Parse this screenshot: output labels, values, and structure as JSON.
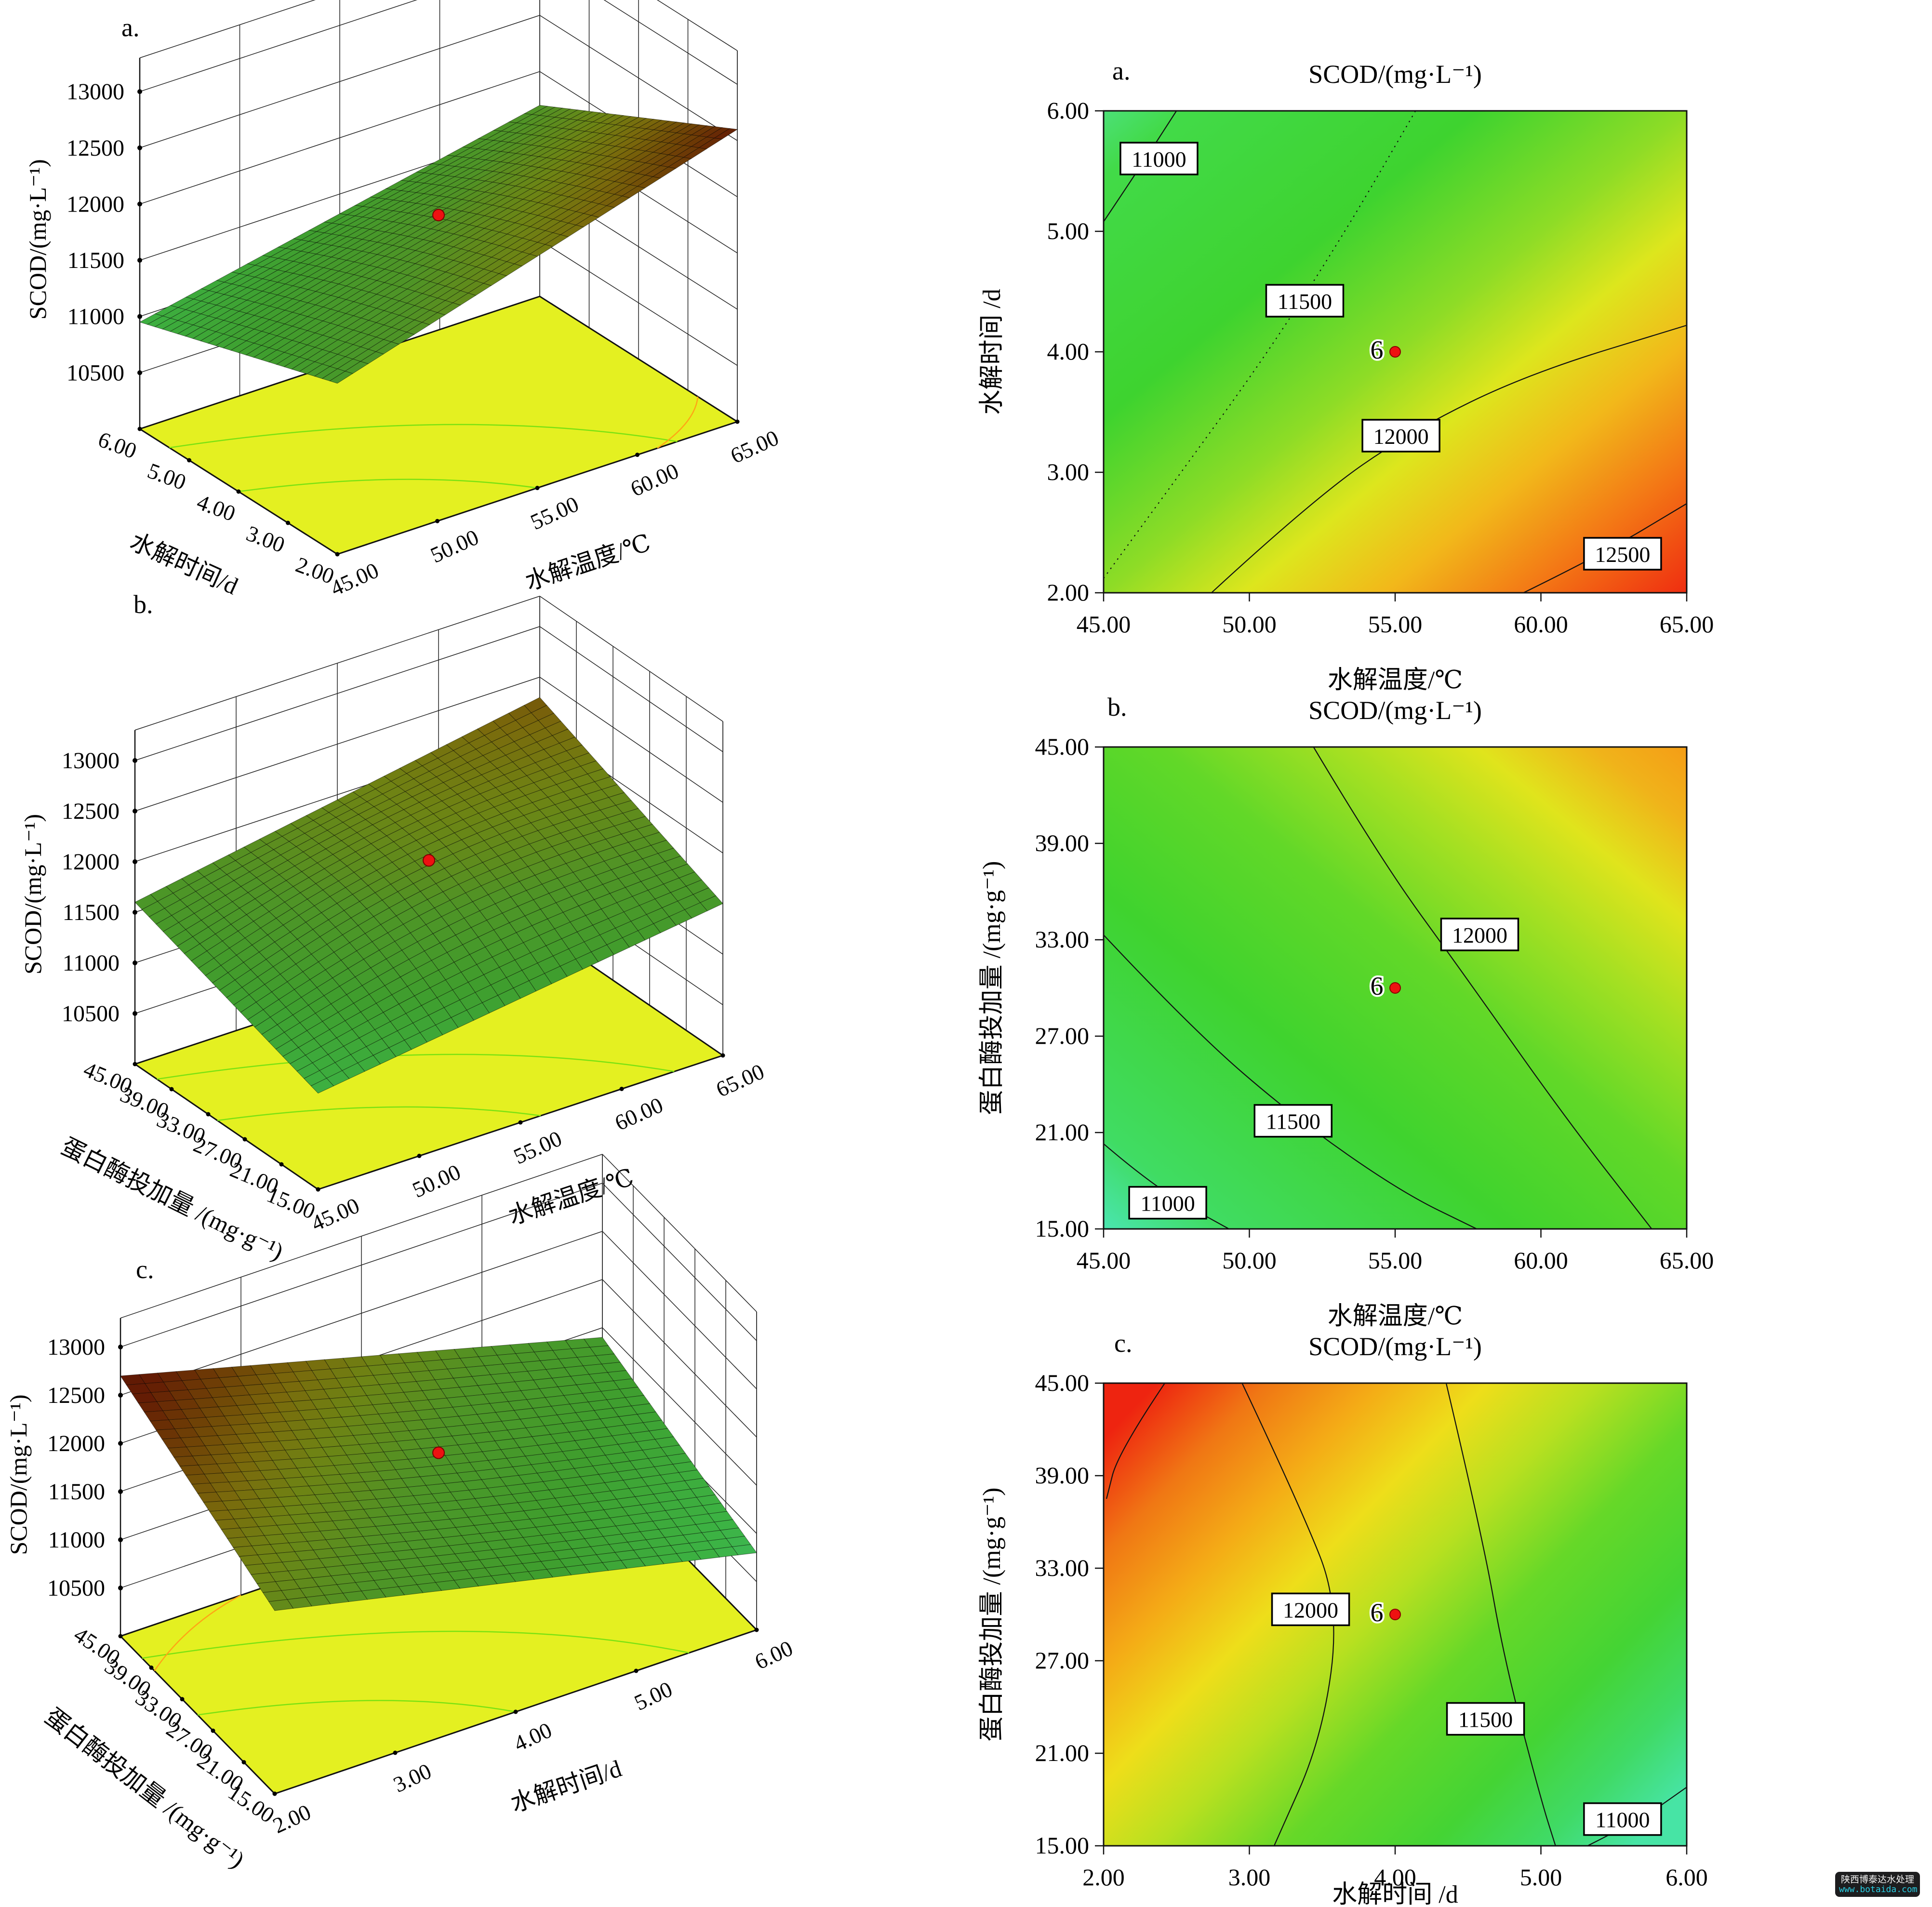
{
  "watermark": {
    "line1": "陕西博泰达水处理",
    "line2": "www.botaida.com"
  },
  "colors": {
    "design_point": "#ee1111",
    "floor": "#e4f021",
    "floor_contour_green": "#7ae212",
    "floor_contour_orange": "#ffa515",
    "axis_line": "#1a1a1a",
    "surface_colormap": [
      [
        10500,
        "#49c98f"
      ],
      [
        10900,
        "#3cb344"
      ],
      [
        11300,
        "#3f9e2e"
      ],
      [
        11700,
        "#4f9426"
      ],
      [
        12000,
        "#6e8414"
      ],
      [
        12200,
        "#7a6a0c"
      ],
      [
        12400,
        "#6f4206"
      ],
      [
        12600,
        "#641c04"
      ],
      [
        12900,
        "#551103"
      ]
    ]
  },
  "chart_data": [
    {
      "id": "a-surface",
      "type": "surface3d",
      "panel_label": "a.",
      "z_axis": {
        "label": "SCOD/(mg·L⁻¹)",
        "ticks": [
          "13000",
          "12500",
          "12000",
          "11500",
          "11000",
          "10500"
        ],
        "min": 10500,
        "max": 13000
      },
      "left_axis": {
        "label": "水解时间/d",
        "ticks": [
          "6.00",
          "5.00",
          "4.00",
          "3.00",
          "2.00"
        ]
      },
      "right_axis": {
        "label": "水解温度/℃",
        "ticks": [
          "45.00",
          "50.00",
          "55.00",
          "60.00",
          "65.00"
        ]
      },
      "surface_z": {
        "left": 10950,
        "front": 11520,
        "right": 12600,
        "back": 11700,
        "dome": 40
      },
      "design_point": {
        "label": "6",
        "z": 11800
      },
      "floor_arcs": [
        {
          "uv": [
            [
              0.5,
              0
            ],
            [
              0.33,
              0.33
            ],
            [
              0,
              0.5
            ]
          ],
          "color": "#7ae212"
        },
        {
          "uv": [
            [
              0.85,
              0
            ],
            [
              0.58,
              0.58
            ],
            [
              0,
              0.85
            ]
          ],
          "color": "#7ae212"
        },
        {
          "uv": [
            [
              0,
              0.8
            ],
            [
              0.07,
              0.93
            ],
            [
              0.2,
              1
            ]
          ],
          "color": "#ffa515"
        }
      ],
      "geom": {
        "L": [
          290,
          890
        ],
        "F": [
          700,
          1150
        ],
        "R": [
          1530,
          875
        ],
        "z0": 10000,
        "zscale": 0.2333,
        "letter": [
          252,
          75
        ]
      }
    },
    {
      "id": "a-contour",
      "type": "contour",
      "panel_label": "a.",
      "title": "SCOD/(mg·L⁻¹)",
      "xlabel": "水解温度/℃",
      "ylabel": "水解时间 /d",
      "xlim": [
        45,
        65
      ],
      "ylim": [
        2,
        6
      ],
      "x_ticks": [
        "45.00",
        "50.00",
        "55.00",
        "60.00",
        "65.00"
      ],
      "y_ticks": [
        "6.00",
        "5.00",
        "4.00",
        "3.00",
        "2.00"
      ],
      "gradient": {
        "dir": [
          0,
          0,
          1,
          1
        ],
        "stops": [
          [
            0,
            "#4ce077"
          ],
          [
            0.07,
            "#42da48"
          ],
          [
            0.32,
            "#3ed32f"
          ],
          [
            0.5,
            "#8edc26"
          ],
          [
            0.62,
            "#dde61d"
          ],
          [
            0.74,
            "#f2b81a"
          ],
          [
            0.87,
            "#f37415"
          ],
          [
            1,
            "#ef2d10"
          ]
        ]
      },
      "contours": [
        {
          "value": "11000",
          "points": [
            [
              45,
              5.08
            ],
            [
              46.3,
              5.55
            ],
            [
              47.5,
              6.0
            ]
          ],
          "label_at": [
            46.9,
            5.6
          ]
        },
        {
          "value": "11500",
          "points": [
            [
              45,
              2.12
            ],
            [
              47.6,
              2.98
            ],
            [
              50.6,
              3.98
            ],
            [
              53.3,
              5.0
            ],
            [
              55.7,
              6.0
            ]
          ],
          "label_at": [
            51.9,
            4.42
          ],
          "dashed": true
        },
        {
          "value": "12000",
          "points": [
            [
              48.7,
              2.0
            ],
            [
              52.2,
              2.78
            ],
            [
              55.6,
              3.35
            ],
            [
              59.6,
              3.82
            ],
            [
              65,
              4.22
            ]
          ],
          "label_at": [
            55.2,
            3.3
          ]
        },
        {
          "value": "12500",
          "points": [
            [
              59.4,
              2.0
            ],
            [
              62.1,
              2.32
            ],
            [
              65,
              2.74
            ]
          ],
          "label_at": [
            62.8,
            2.32
          ]
        }
      ],
      "point": {
        "x": 55,
        "y": 4.0,
        "label": "6"
      },
      "area": [
        2290,
        230,
        3500,
        1230
      ],
      "anchors": {
        "title": [
          2895,
          172
        ],
        "letter": [
          2308,
          165
        ],
        "xticks_y": 1312,
        "xlabel_y": 1428
      }
    },
    {
      "id": "b-surface",
      "type": "surface3d",
      "panel_label": "b.",
      "z_axis": {
        "label": "SCOD/(mg·L⁻¹)",
        "ticks": [
          "13000",
          "12500",
          "12000",
          "11500",
          "11000",
          "10500"
        ],
        "min": 10500,
        "max": 13000
      },
      "left_axis": {
        "label": "蛋白酶投加量 /(mg·g⁻¹)",
        "ticks": [
          "45.00",
          "39.00",
          "33.00",
          "27.00",
          "21.00",
          "15.00"
        ]
      },
      "right_axis": {
        "label": "水解温度/℃",
        "ticks": [
          "45.00",
          "50.00",
          "55.00",
          "60.00",
          "65.00"
        ]
      },
      "surface_z": {
        "left": 11600,
        "front": 10950,
        "right": 11500,
        "back": 12300,
        "dome": 230
      },
      "design_point": {
        "label": "6",
        "z": 11900
      },
      "floor_arcs": [
        {
          "uv": [
            [
              0.55,
              0
            ],
            [
              0.36,
              0.36
            ],
            [
              0,
              0.55
            ]
          ],
          "color": "#7ae212"
        },
        {
          "uv": [
            [
              0.88,
              0
            ],
            [
              0.6,
              0.6
            ],
            [
              0,
              0.88
            ]
          ],
          "color": "#7ae212"
        }
      ],
      "geom": {
        "L": [
          280,
          2208
        ],
        "F": [
          660,
          2468
        ],
        "R": [
          1500,
          2190
        ],
        "z0": 10000,
        "zscale": 0.21,
        "letter": [
          277,
          1272
        ]
      }
    },
    {
      "id": "b-contour",
      "type": "contour",
      "panel_label": "b.",
      "title": "SCOD/(mg·L⁻¹)",
      "xlabel": "水解温度/℃",
      "ylabel": "蛋白酶投加量 /(mg·g⁻¹)",
      "xlim": [
        45,
        65
      ],
      "ylim": [
        15,
        45
      ],
      "x_ticks": [
        "45.00",
        "50.00",
        "55.00",
        "60.00",
        "65.00"
      ],
      "y_ticks": [
        "45.00",
        "39.00",
        "33.00",
        "27.00",
        "21.00",
        "15.00"
      ],
      "gradient": {
        "dir": [
          0,
          1,
          1,
          0
        ],
        "stops": [
          [
            0,
            "#4ae5b0"
          ],
          [
            0.1,
            "#40dc63"
          ],
          [
            0.35,
            "#3fd32e"
          ],
          [
            0.55,
            "#62d828"
          ],
          [
            0.7,
            "#a5e022"
          ],
          [
            0.82,
            "#e0e41c"
          ],
          [
            0.92,
            "#f0b31a"
          ],
          [
            1,
            "#f59d16"
          ]
        ]
      },
      "contours": [
        {
          "value": "12000",
          "points": [
            [
              52.2,
              45
            ],
            [
              54.5,
              38
            ],
            [
              57.3,
              31
            ],
            [
              60.8,
              22
            ],
            [
              63.8,
              15
            ]
          ],
          "label_at": [
            57.9,
            33.3
          ]
        },
        {
          "value": "11500",
          "points": [
            [
              45,
              33.3
            ],
            [
              48,
              27.5
            ],
            [
              51.5,
              22
            ],
            [
              55.2,
              17.3
            ],
            [
              57.8,
              15
            ]
          ],
          "label_at": [
            51.5,
            21.7
          ]
        },
        {
          "value": "11000",
          "points": [
            [
              45,
              20.3
            ],
            [
              46.8,
              17.5
            ],
            [
              49.3,
              15
            ]
          ],
          "label_at": [
            47.2,
            16.6
          ]
        }
      ],
      "point": {
        "x": 55,
        "y": 30,
        "label": "6"
      },
      "area": [
        2290,
        1550,
        3500,
        2550
      ],
      "anchors": {
        "title": [
          2895,
          1492
        ],
        "letter": [
          2298,
          1485
        ],
        "xticks_y": 2632,
        "xlabel_y": 2748
      }
    },
    {
      "id": "c-surface",
      "type": "surface3d",
      "panel_label": "c.",
      "z_axis": {
        "label": "SCOD/(mg·L⁻¹)",
        "ticks": [
          "13000",
          "12500",
          "12000",
          "11500",
          "11000",
          "10500"
        ],
        "min": 10500,
        "max": 13000
      },
      "left_axis": {
        "label": "蛋白酶投加量 /(mg·g⁻¹)",
        "ticks": [
          "45.00",
          "39.00",
          "33.00",
          "27.00",
          "21.00",
          "15.00"
        ]
      },
      "right_axis": {
        "label": "水解时间/d",
        "ticks": [
          "2.00",
          "3.00",
          "4.00",
          "5.00",
          "6.00"
        ]
      },
      "surface_z": {
        "left": 12700,
        "front": 11900,
        "right": 10800,
        "back": 11400,
        "dome": -60
      },
      "design_point": {
        "label": "6",
        "z": 11800
      },
      "floor_arcs": [
        {
          "uv": [
            [
              0.5,
              0
            ],
            [
              0.33,
              0.33
            ],
            [
              0,
              0.5
            ]
          ],
          "color": "#7ae212"
        },
        {
          "uv": [
            [
              0.86,
              0
            ],
            [
              0.58,
              0.58
            ],
            [
              0,
              0.86
            ]
          ],
          "color": "#7ae212"
        },
        {
          "uv": [
            [
              0.78,
              0
            ],
            [
              0.95,
              0.12
            ],
            [
              1,
              0.25
            ]
          ],
          "color": "#ffa515"
        }
      ],
      "geom": {
        "L": [
          250,
          3395
        ],
        "F": [
          570,
          3722
        ],
        "R": [
          1570,
          3382
        ],
        "z0": 10000,
        "zscale": 0.2,
        "letter": [
          282,
          2652
        ]
      }
    },
    {
      "id": "c-contour",
      "type": "contour",
      "panel_label": "c.",
      "title": "SCOD/(mg·L⁻¹)",
      "xlabel": "水解时间 /d",
      "ylabel": "蛋白酶投加量 /(mg·g⁻¹)",
      "xlim": [
        2,
        6
      ],
      "ylim": [
        15,
        45
      ],
      "x_ticks": [
        "2.00",
        "3.00",
        "4.00",
        "5.00",
        "6.00"
      ],
      "y_ticks": [
        "45.00",
        "39.00",
        "33.00",
        "27.00",
        "21.00",
        "15.00"
      ],
      "gradient": {
        "dir": [
          0,
          0.12,
          1,
          0.88
        ],
        "stops": [
          [
            0,
            "#ee2410"
          ],
          [
            0.12,
            "#f07714"
          ],
          [
            0.24,
            "#f4ab16"
          ],
          [
            0.36,
            "#eede1a"
          ],
          [
            0.48,
            "#b8e020"
          ],
          [
            0.62,
            "#66d828"
          ],
          [
            0.78,
            "#44d434"
          ],
          [
            0.9,
            "#40da66"
          ],
          [
            1,
            "#47e4a5"
          ]
        ]
      },
      "contours": [
        {
          "value": "",
          "points": [
            [
              2.42,
              45
            ],
            [
              2.1,
              40.5
            ],
            [
              2.02,
              37.5
            ]
          ]
        },
        {
          "value": "12000",
          "points": [
            [
              2.95,
              45
            ],
            [
              3.35,
              37
            ],
            [
              3.62,
              30.5
            ],
            [
              3.5,
              22
            ],
            [
              3.17,
              15
            ]
          ],
          "label_at": [
            3.42,
            30.3
          ]
        },
        {
          "value": "11500",
          "points": [
            [
              4.35,
              45
            ],
            [
              4.6,
              35
            ],
            [
              4.75,
              27
            ],
            [
              5.0,
              18
            ],
            [
              5.1,
              15
            ]
          ],
          "label_at": [
            4.62,
            23.2
          ]
        },
        {
          "value": "11000",
          "points": [
            [
              5.32,
              15
            ],
            [
              5.7,
              16.8
            ],
            [
              6.0,
              18.8
            ]
          ],
          "label_at": [
            5.56,
            16.7
          ]
        }
      ],
      "point": {
        "x": 4.0,
        "y": 30,
        "label": "6"
      },
      "area": [
        2290,
        2870,
        3500,
        3830
      ],
      "anchors": {
        "title": [
          2895,
          2812
        ],
        "letter": [
          2312,
          2805
        ],
        "xticks_y": 3912,
        "xlabel_y": 3948
      }
    }
  ]
}
